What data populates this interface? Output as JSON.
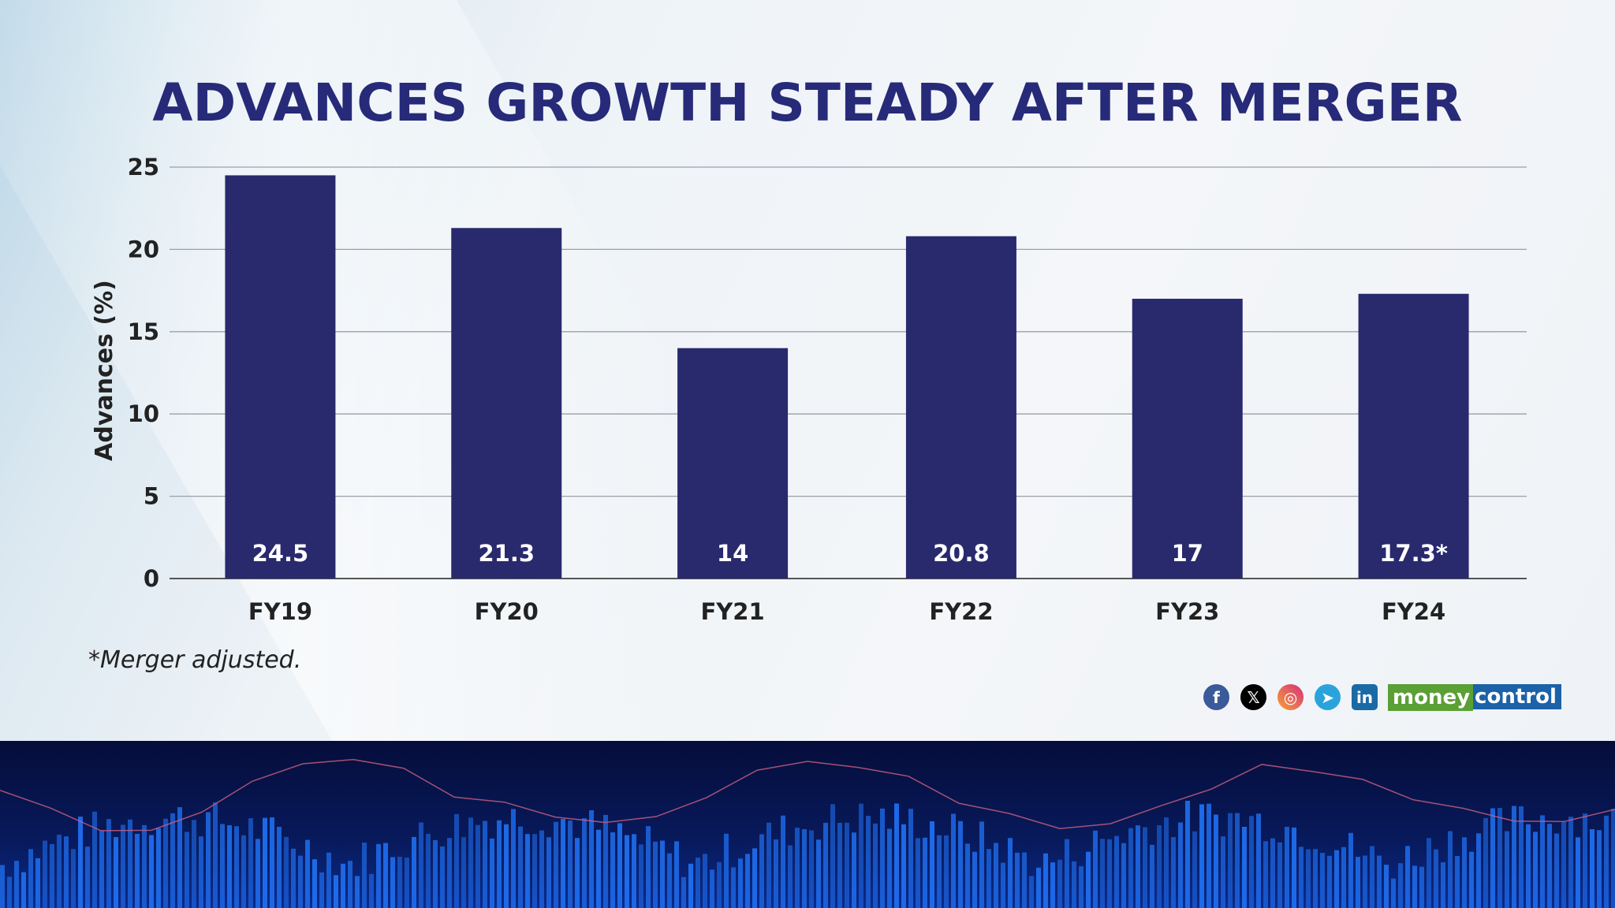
{
  "chart_data": {
    "type": "bar",
    "title": "ADVANCES GROWTH STEADY AFTER MERGER",
    "xlabel": "",
    "ylabel": "Advances (%)",
    "categories": [
      "FY19",
      "FY20",
      "FY21",
      "FY22",
      "FY23",
      "FY24"
    ],
    "values": [
      24.5,
      21.3,
      14,
      20.8,
      17,
      17.3
    ],
    "data_labels": [
      "24.5",
      "21.3",
      "14",
      "20.8",
      "17",
      "17.3*"
    ],
    "ylim": [
      0,
      25
    ],
    "yticks": [
      "0",
      "5",
      "10",
      "15",
      "20",
      "25"
    ],
    "grid": true,
    "bar_color": "#29296e"
  },
  "footnote": "*Merger adjusted.",
  "social": [
    "facebook-icon",
    "x-icon",
    "instagram-icon",
    "telegram-icon",
    "linkedin-icon"
  ],
  "brand": {
    "part1": "money",
    "part2": "control"
  }
}
